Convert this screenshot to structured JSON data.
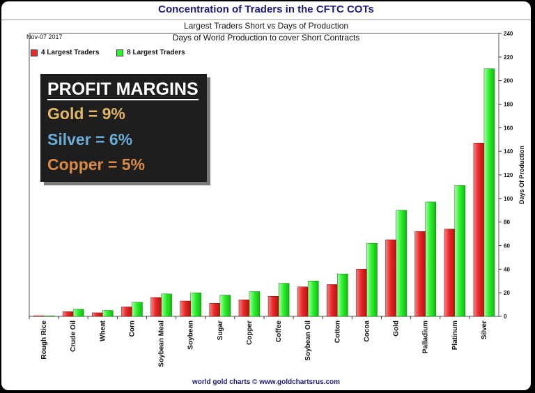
{
  "header": {
    "title": "Concentration of Traders in the CFTC COTs",
    "subtitle": "Largest Traders Short vs Days of Production",
    "subtitle2": "Days of World Production to cover Short Contracts",
    "date": "Nov-07  2017"
  },
  "legend": {
    "series1": "4 Largest Traders",
    "series2": "8 Largest Traders"
  },
  "callout": {
    "heading": "PROFIT MARGINS",
    "gold": "Gold = 9%",
    "silver": "Silver = 6%",
    "copper": "Copper = 5%"
  },
  "footer": "world gold charts © www.goldchartsrus.com",
  "colors": {
    "series1": "#e82a2a",
    "series2": "#2ef22e",
    "title": "#1a1a7a",
    "gold": "#e2b766",
    "silver": "#6aaed6",
    "copper": "#d98a45"
  },
  "chart_data": {
    "type": "bar",
    "title": "Concentration of Traders in the CFTC COTs",
    "subtitle": "Largest Traders Short vs Days of Production",
    "ylabel": "Days Of Production",
    "ylim": [
      0,
      240
    ],
    "yticks": [
      0,
      20,
      40,
      60,
      80,
      100,
      120,
      140,
      160,
      180,
      200,
      220,
      240
    ],
    "grid": false,
    "legend_position": "top-left",
    "categories": [
      "Rough Rice",
      "Crude Oil",
      "Wheat",
      "Corn",
      "Soybean Meal",
      "Soybean",
      "Sugar",
      "Copper",
      "Coffee",
      "Soybean Oil",
      "Cotton",
      "Cocoa",
      "Gold",
      "Palladium",
      "Platinum",
      "Silver"
    ],
    "series": [
      {
        "name": "4 Largest Traders",
        "values": [
          0.5,
          4,
          3,
          8,
          16,
          13,
          11,
          14,
          17,
          25,
          27,
          40,
          65,
          72,
          74,
          147
        ]
      },
      {
        "name": "8 Largest Traders",
        "values": [
          0.5,
          6,
          5,
          12,
          19,
          20,
          18,
          21,
          28,
          30,
          36,
          62,
          90,
          97,
          111,
          210
        ]
      }
    ]
  }
}
